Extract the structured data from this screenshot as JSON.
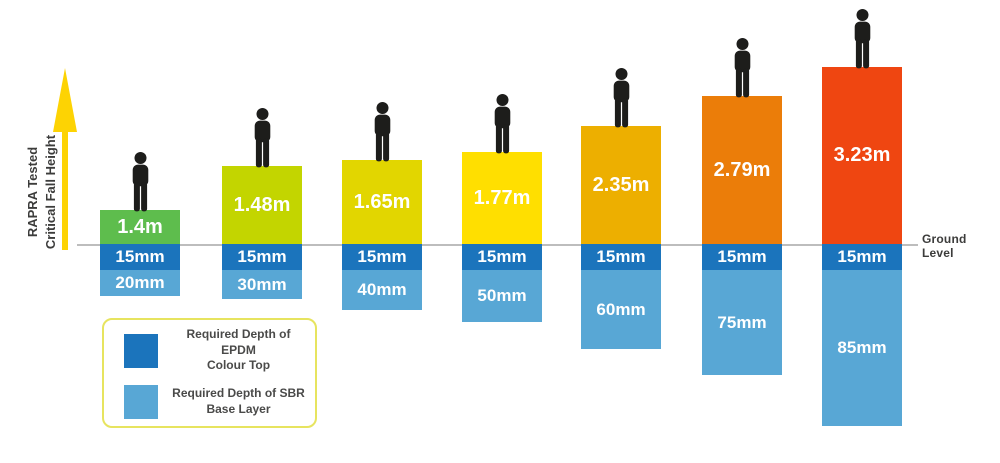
{
  "page": {
    "background": "#ffffff"
  },
  "y_axis_label": {
    "line1": "RAPRA Tested",
    "line2": "Critical Fall Height"
  },
  "ground": {
    "label": "Ground Level",
    "line_color": "#bdbdbd"
  },
  "arrow": {
    "color": "#fdd303",
    "icon": "up-arrow-icon"
  },
  "person_icon": {
    "name": "person-silhouette-icon",
    "color": "#1d1d1b"
  },
  "legend": {
    "border_color": "#e7e45f",
    "items": [
      {
        "line1": "Required Depth of EPDM",
        "line2": "Colour Top",
        "color": "#1b74bc"
      },
      {
        "line1": "Required Depth of SBR",
        "line2": "Base Layer",
        "color": "#58a7d5"
      }
    ]
  },
  "chart_data": {
    "type": "bar",
    "orientation": "vertical",
    "title": "",
    "xlabel": "",
    "ylabel": "RAPRA Tested Critical Fall Height",
    "legend_position": "bottom-left",
    "grid": false,
    "annotations": {
      "ground_level": "Ground Level"
    },
    "series": [
      {
        "name": "RAPRA Tested Critical Fall Height",
        "unit": "m",
        "values": [
          1.4,
          1.48,
          1.65,
          1.77,
          2.35,
          2.79,
          3.23
        ],
        "labels": [
          "1.4m",
          "1.48m",
          "1.65m",
          "1.77m",
          "2.35m",
          "2.79m",
          "3.23m"
        ],
        "colors": [
          "#5ebd4d",
          "#c3d500",
          "#e2d600",
          "#ffdf00",
          "#edaf00",
          "#eb7d09",
          "#ef4611"
        ]
      },
      {
        "name": "Required Depth of EPDM Colour Top",
        "unit": "mm",
        "values": [
          15,
          15,
          15,
          15,
          15,
          15,
          15
        ],
        "labels": [
          "15mm",
          "15mm",
          "15mm",
          "15mm",
          "15mm",
          "15mm",
          "15mm"
        ],
        "color": "#1b74bc"
      },
      {
        "name": "Required Depth of SBR Base Layer",
        "unit": "mm",
        "values": [
          20,
          30,
          40,
          50,
          60,
          75,
          85
        ],
        "labels": [
          "20mm",
          "30mm",
          "40mm",
          "50mm",
          "60mm",
          "75mm",
          "85mm"
        ],
        "color": "#58a7d5"
      }
    ]
  }
}
